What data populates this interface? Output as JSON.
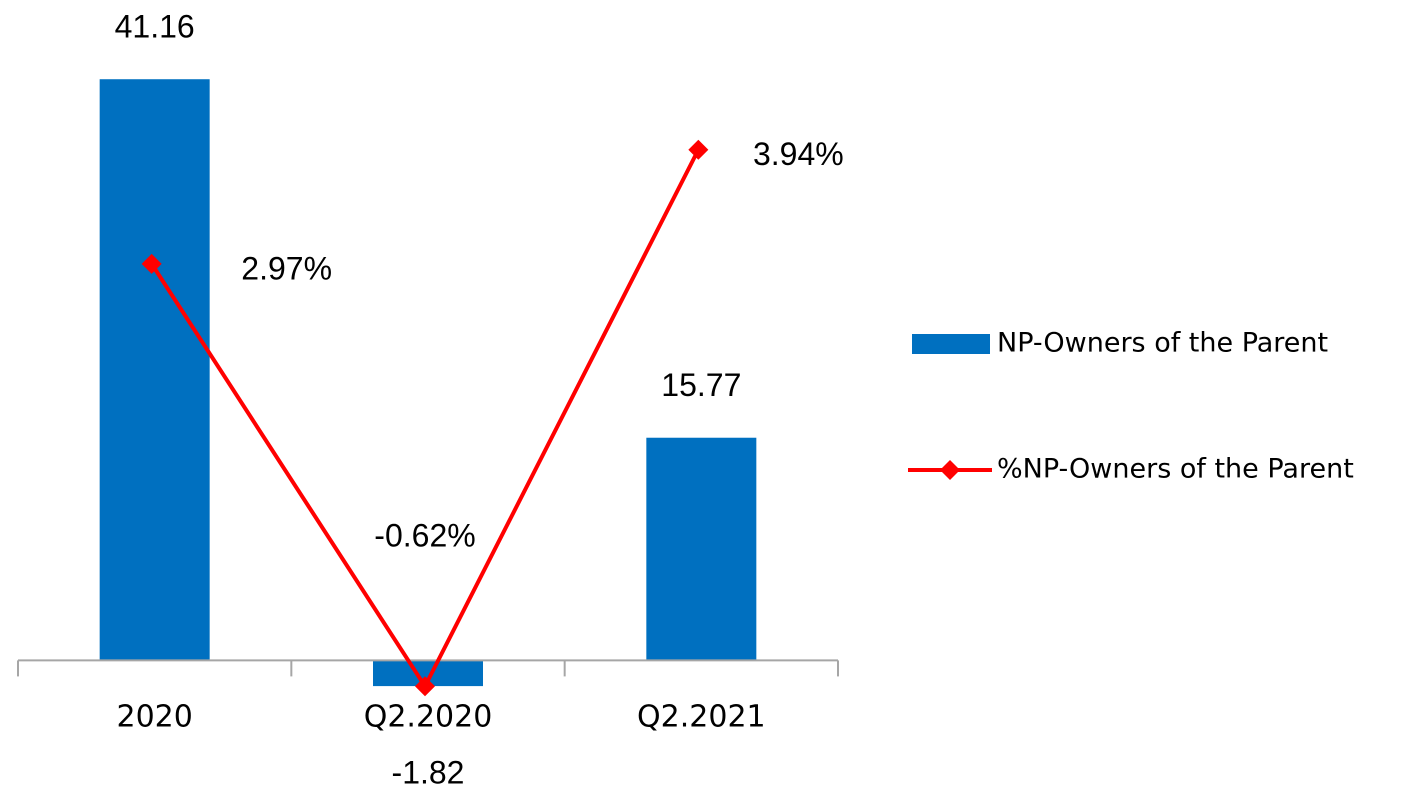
{
  "chart_data": {
    "type": "bar+line",
    "categories": [
      "2020",
      "Q2.2020",
      "Q2.2021"
    ],
    "series": [
      {
        "name": "NP-Owners of the Parent",
        "type": "bar",
        "color": "#0070c0",
        "values": [
          41.16,
          -1.82,
          15.77
        ]
      },
      {
        "name": "%NP-Owners of the Parent",
        "type": "line",
        "axis": "y2",
        "color": "#ff0000",
        "values": [
          2.97,
          -0.62,
          3.94
        ],
        "value_labels": [
          "2.97%",
          "-0.62%",
          "3.94%"
        ]
      }
    ],
    "ylim": [
      -5,
      45
    ],
    "y2lim": [
      -1,
      5
    ],
    "legend": "right"
  }
}
